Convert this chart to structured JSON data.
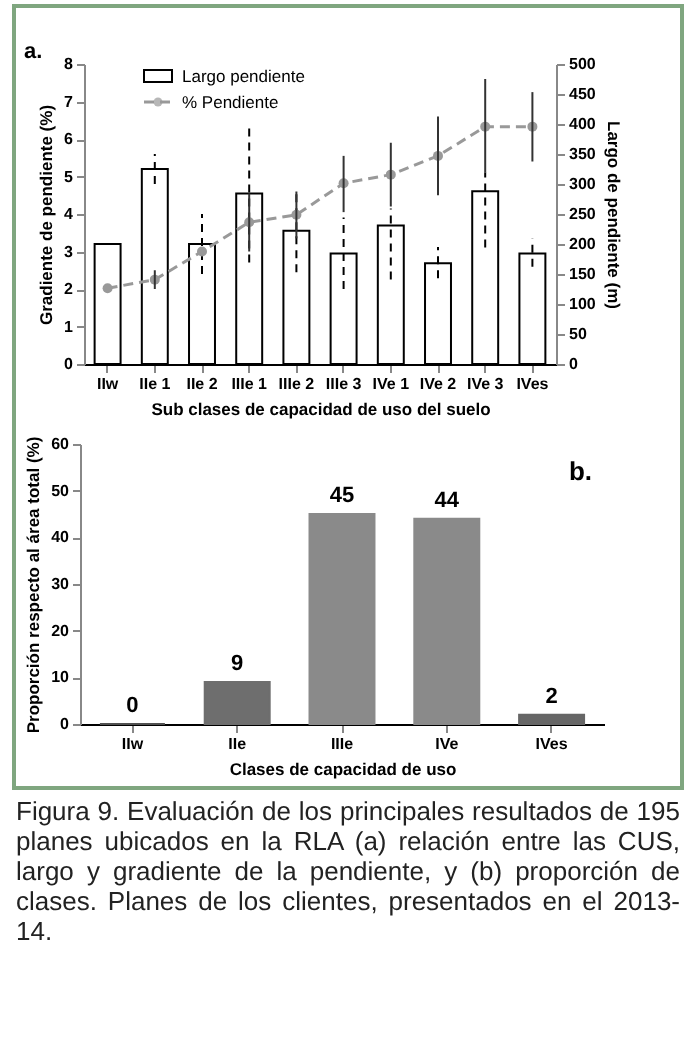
{
  "chart_data": [
    {
      "type": "bar",
      "categories": [
        "IIw",
        "IIe 1",
        "IIe 2",
        "IIIe 1",
        "IIIe 2",
        "IIIe 3",
        "IVe 1",
        "IVe 2",
        "IVe 3",
        "IVes"
      ],
      "series": [
        {
          "name": "Largo pendiente",
          "type": "bar",
          "axis": "y2",
          "color": "#ffffff",
          "values": [
            200,
            325,
            200,
            284,
            222,
            184,
            231,
            168,
            288,
            184
          ],
          "errors": [
            null,
            [
              300,
              350
            ],
            [
              150,
              250
            ],
            [
              169,
              400
            ],
            [
              153,
              288
            ],
            [
              125,
              244
            ],
            [
              141,
              259
            ],
            [
              143,
              195
            ],
            [
              194,
              319
            ],
            [
              162,
              209
            ]
          ]
        },
        {
          "name": "% Pendiente",
          "type": "line",
          "color": "#999999",
          "marker": "circle",
          "line_style": "dashed",
          "values": [
            2.02,
            2.25,
            3.0,
            3.78,
            3.98,
            4.82,
            5.05,
            5.55,
            6.33,
            6.33
          ],
          "errors": [
            null,
            [
              2.0,
              2.5
            ],
            null,
            [
              3.0,
              4.55
            ],
            [
              3.35,
              4.6
            ],
            [
              4.05,
              5.55
            ],
            [
              4.2,
              5.9
            ],
            [
              4.5,
              6.6
            ],
            [
              5.1,
              7.6
            ],
            [
              5.4,
              7.25
            ]
          ]
        }
      ],
      "xlabel": "Sub clases de capacidad de uso del suelo",
      "ylabel": "Gradiente de pendiente (%)",
      "y2label": "Largo de pendiente (m)",
      "ylim": [
        0,
        8
      ],
      "yticks": [
        0,
        1,
        2,
        3,
        4,
        5,
        6,
        7,
        8
      ],
      "y2lim": [
        0,
        500
      ],
      "y2ticks": [
        0,
        50,
        100,
        150,
        200,
        250,
        300,
        350,
        400,
        450,
        500
      ],
      "legend": "top left",
      "annotations": [
        "a."
      ]
    },
    {
      "type": "bar",
      "categories": [
        "IIw",
        "IIe",
        "IIIe",
        "IVe",
        "IVes"
      ],
      "values": [
        0,
        9,
        45,
        44,
        2
      ],
      "colors": [
        "#505050",
        "#6e6e6e",
        "#8a8a8a",
        "#8a8a8a",
        "#666666"
      ],
      "data_labels": true,
      "xlabel": "Clases de capacidad de uso",
      "ylabel": "Proporción respecto al área total (%)",
      "ylim": [
        0,
        60
      ],
      "yticks": [
        0,
        10,
        20,
        30,
        40,
        50,
        60
      ],
      "annotations": [
        "b.",
        "Figura 9. Evaluación de los principales resultados de 195 planes ubicados en la RLA (a) relación entre las CUS, largo y gradiente de la pendiente, y (b) proporción de clases. Planes de los clientes, presentados en el 2013-14."
      ]
    }
  ]
}
